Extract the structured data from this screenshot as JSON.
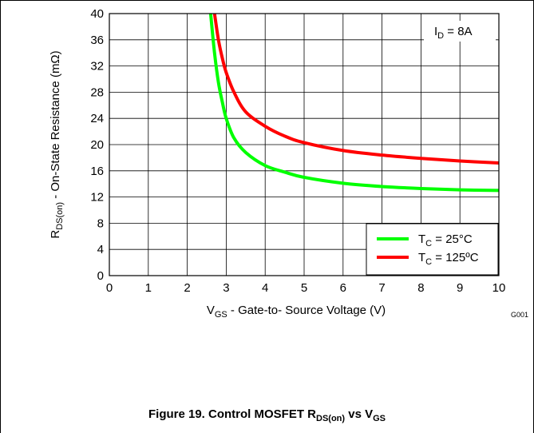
{
  "chart_data": {
    "type": "line",
    "xlabel": {
      "main": "V",
      "sub": "GS",
      "rest": " - Gate-to- Source Voltage (V)"
    },
    "ylabel": {
      "main": "R",
      "sub": "DS(on)",
      "rest": " - On-State Resistance (mΩ)"
    },
    "xlim": [
      0,
      10
    ],
    "ylim": [
      0,
      40
    ],
    "xticks": [
      0,
      1,
      2,
      3,
      4,
      5,
      6,
      7,
      8,
      9,
      10
    ],
    "yticks": [
      0,
      4,
      8,
      12,
      16,
      20,
      24,
      28,
      32,
      36,
      40
    ],
    "grid": true,
    "legend_position": "bottom-right",
    "annotation": {
      "main": "I",
      "sub": "D",
      "rest": " = 8A"
    },
    "figure_code": "G001",
    "series": [
      {
        "name": {
          "main": "T",
          "sub": "C",
          "rest": " = 25°C"
        },
        "color": "#00ff00",
        "x": [
          2.6,
          2.7,
          2.8,
          2.9,
          3.0,
          3.2,
          3.5,
          4.0,
          4.5,
          5.0,
          6.0,
          7.0,
          8.0,
          9.0,
          10.0
        ],
        "y": [
          40,
          34,
          29.5,
          26.5,
          24,
          21,
          18.8,
          16.8,
          15.8,
          15.0,
          14.1,
          13.6,
          13.3,
          13.1,
          13.0
        ]
      },
      {
        "name": {
          "main": "T",
          "sub": "C",
          "rest": " = 125ºC"
        },
        "color": "#ff0000",
        "x": [
          2.7,
          2.8,
          2.9,
          3.0,
          3.2,
          3.5,
          4.0,
          4.5,
          5.0,
          6.0,
          7.0,
          8.0,
          9.0,
          10.0
        ],
        "y": [
          40,
          36,
          33.2,
          31,
          28,
          25,
          22.8,
          21.3,
          20.3,
          19.1,
          18.4,
          17.9,
          17.5,
          17.2
        ]
      }
    ]
  },
  "caption": {
    "prefix": "Figure 19. Control MOSFET R",
    "sub1": "DS(on)",
    "mid": " vs V",
    "sub2": "GS"
  }
}
